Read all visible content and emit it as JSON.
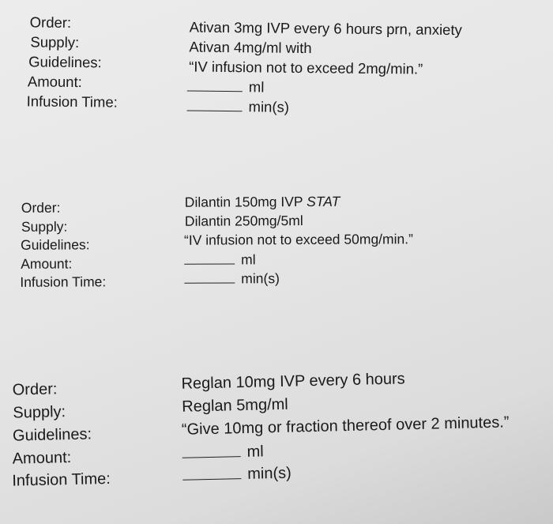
{
  "problems": [
    {
      "labels": {
        "order": "Order:",
        "supply": "Supply:",
        "guidelines": "Guidelines:",
        "amount": "Amount:",
        "infusion_time": "Infusion Time:"
      },
      "order": "Ativan 3mg IVP every 6 hours prn, anxiety",
      "supply": "Ativan 4mg/ml with",
      "guidelines": "“IV infusion not to exceed 2mg/min.”",
      "amount_unit": "ml",
      "time_unit": "min(s)"
    },
    {
      "labels": {
        "order": "Order:",
        "supply": "Supply:",
        "guidelines": "Guidelines:",
        "amount": "Amount:",
        "infusion_time": "Infusion Time:"
      },
      "order": "Dilantin 150mg IVP",
      "order_emphasis": "STAT",
      "supply": "Dilantin 250mg/5ml",
      "guidelines": "“IV infusion not to exceed 50mg/min.”",
      "amount_unit": "ml",
      "time_unit": "min(s)"
    },
    {
      "labels": {
        "order": "Order:",
        "supply": "Supply:",
        "guidelines": "Guidelines:",
        "amount": "Amount:",
        "infusion_time": "Infusion Time:"
      },
      "order": "Reglan 10mg IVP every 6 hours",
      "supply": "Reglan 5mg/ml",
      "guidelines": "“Give 10mg or fraction thereof over 2 minutes.”",
      "amount_unit": "ml",
      "time_unit": "min(s)"
    }
  ]
}
